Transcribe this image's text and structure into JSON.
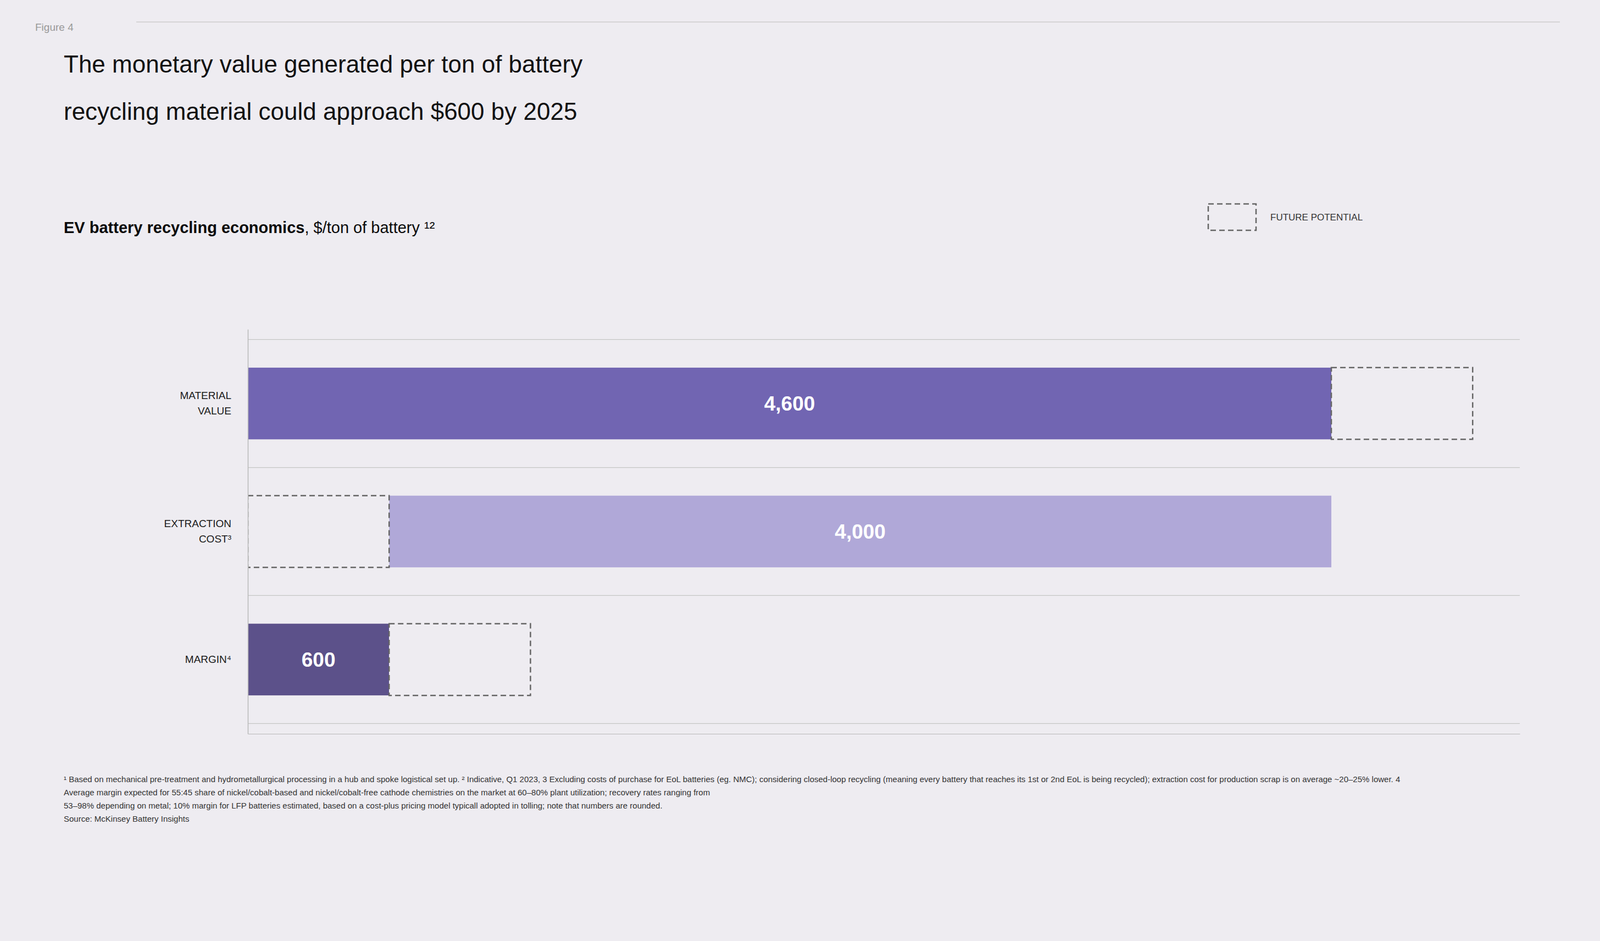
{
  "chart_data": {
    "type": "bar",
    "orientation": "horizontal",
    "title": "The monetary value generated per ton of battery\nrecycling material could approach $600 by 2025",
    "subtitle": [
      "EV battery recycling economics",
      ", $/ton of battery ¹²"
    ],
    "annotations": [
      "Figure 4",
      "¹ Based on mechanical pre-treatment and hydrometallurgical processing in a hub and spoke logistical set up. ² Indicative, Q1 2023, 3 Excluding costs of purchase for EoL batteries (eg. NMC); considering closed-loop recycling (meaning every battery that reaches its 1st or 2nd EoL is being recycled); extraction cost for production scrap is on average ~20–25% lower. 4",
      "Average margin expected for 55:45 share of nickel/cobalt-based and nickel/cobalt-free cathode chemistries on the market at 60–80% plant utilization; recovery rates ranging from",
      "53–98% depending on metal; 10% margin for LFP batteries estimated, based on a cost-plus pricing model typicall adopted in tolling; note that numbers are rounded.",
      "Source: McKinsey Battery Insights"
    ],
    "categories": [
      "MATERIAL\nVALUE",
      "EXTRACTION\nCOST³",
      "MARGIN⁴"
    ],
    "series": [
      {
        "start": [
          0,
          600,
          0
        ],
        "values": [
          4600,
          4000,
          600
        ],
        "colors": [
          "#7165b2",
          "#b0a8d8",
          "#5c518a"
        ],
        "value_labels": [
          "4,600",
          "4,000",
          "600"
        ]
      },
      {
        "name": "FUTURE POTENTIAL",
        "start": [
          4600,
          0,
          600
        ],
        "values": [
          600,
          600,
          600
        ],
        "color": "#666666",
        "line_style": "dashed"
      }
    ],
    "xlim": [
      0,
      5400
    ],
    "xticks": [],
    "tick_labels": false,
    "grid": false,
    "legend": "top-right",
    "data_labels": true
  }
}
